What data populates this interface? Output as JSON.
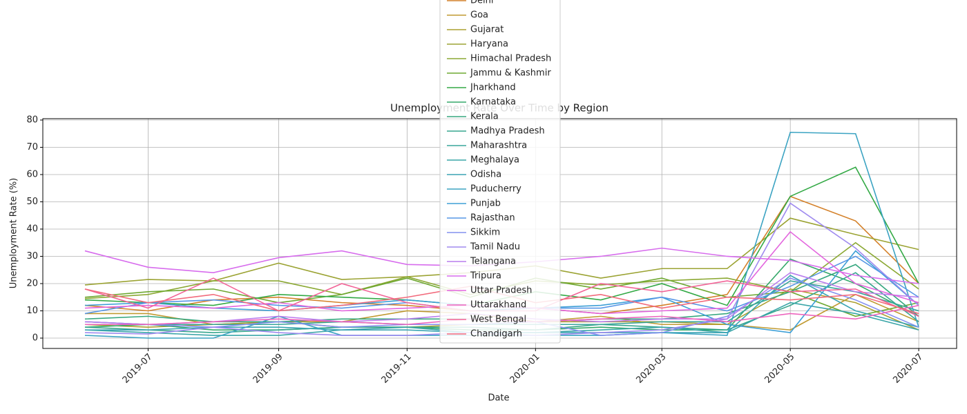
{
  "chart_data": {
    "type": "line",
    "title": "Unemployment Rate Over Time by Region",
    "x_label": "Date",
    "y_label": "Unemployment Rate (%)",
    "x": [
      "2019-06",
      "2019-07",
      "2019-08",
      "2019-09",
      "2019-10",
      "2019-11",
      "2019-12",
      "2020-01",
      "2020-02",
      "2020-03",
      "2020-04",
      "2020-05",
      "2020-06",
      "2020-07"
    ],
    "xlim": [
      "2019-05-12",
      "2020-07-19"
    ],
    "xticks": [
      "2019-07",
      "2019-09",
      "2019-11",
      "2020-01",
      "2020-03",
      "2020-05",
      "2020-07"
    ],
    "ylim": [
      -3.8,
      80.5
    ],
    "yticks": [
      0,
      10,
      20,
      30,
      40,
      50,
      60,
      70,
      80
    ],
    "grid": true,
    "legend": "upper center",
    "series": [
      {
        "name": "Delhi",
        "color": "#d4812a",
        "values": [
          12,
          10,
          14,
          15,
          13,
          12,
          10,
          11,
          9,
          12,
          16,
          52,
          43,
          20
        ]
      },
      {
        "name": "Goa",
        "color": "#c09a31",
        "values": [
          9,
          9,
          5,
          6,
          6,
          10,
          9,
          6,
          8,
          5,
          5,
          3,
          16,
          6
        ]
      },
      {
        "name": "Gujarat",
        "color": "#aca031",
        "values": [
          5,
          4,
          5,
          6,
          4,
          4,
          5,
          6,
          6,
          6,
          5,
          18,
          13,
          3
        ]
      },
      {
        "name": "Haryana",
        "color": "#9ba333",
        "values": [
          19.5,
          21.5,
          21,
          27.5,
          21.5,
          22.5,
          24,
          26.5,
          22,
          25.5,
          25.5,
          44,
          38,
          32.5
        ]
      },
      {
        "name": "Himachal Pradesh",
        "color": "#8ba833",
        "values": [
          14.5,
          16,
          21,
          21,
          16,
          22.5,
          16,
          21,
          19.5,
          21,
          22,
          17,
          35,
          18
        ]
      },
      {
        "name": "Jammu & Kashmir",
        "color": "#6ea831",
        "values": [
          15,
          17,
          18,
          13,
          16,
          22,
          15,
          22,
          18,
          22,
          15,
          17,
          8,
          13
        ]
      },
      {
        "name": "Jharkhand",
        "color": "#33a945",
        "values": [
          14,
          13,
          12,
          16,
          15,
          14,
          12,
          17,
          14,
          20,
          12,
          52,
          62.7,
          20
        ]
      },
      {
        "name": "Karnataka",
        "color": "#35a86a",
        "values": [
          4,
          5,
          3,
          3,
          4,
          4,
          3,
          3,
          4,
          3,
          3,
          29,
          20,
          8
        ]
      },
      {
        "name": "Kerala",
        "color": "#36a77f",
        "values": [
          7,
          8,
          6,
          6,
          7,
          7,
          7,
          6,
          7,
          7,
          9,
          17,
          27,
          8
        ]
      },
      {
        "name": "Madhya Pradesh",
        "color": "#37a68e",
        "values": [
          4,
          3,
          2,
          3,
          4,
          4,
          4,
          3,
          5,
          4,
          3,
          12,
          24,
          6
        ]
      },
      {
        "name": "Maharashtra",
        "color": "#38a59b",
        "values": [
          6,
          5,
          5,
          5,
          6,
          5,
          5,
          5,
          5,
          6,
          6,
          21,
          17,
          10
        ]
      },
      {
        "name": "Meghalaya",
        "color": "#39a5a7",
        "values": [
          3,
          2,
          1,
          1,
          3,
          4,
          2,
          2,
          3,
          4,
          2,
          13,
          9,
          3
        ]
      },
      {
        "name": "Odisha",
        "color": "#3aa4b3",
        "values": [
          3,
          3,
          4,
          4,
          3,
          3,
          2,
          2,
          2,
          2,
          2,
          23,
          10,
          4
        ]
      },
      {
        "name": "Puducherry",
        "color": "#3ba3c2",
        "values": [
          1,
          0,
          0,
          8,
          1,
          1,
          1,
          1,
          1,
          2,
          1,
          75.5,
          75,
          4
        ]
      },
      {
        "name": "Punjab",
        "color": "#3d9fd6",
        "values": [
          12,
          13,
          11,
          10,
          12,
          14,
          12,
          11,
          12,
          15,
          5,
          2,
          32,
          12
        ]
      },
      {
        "name": "Rajasthan",
        "color": "#5796e6",
        "values": [
          9,
          13,
          14,
          12,
          11,
          13,
          10,
          11,
          11,
          15,
          10,
          19,
          30,
          15
        ]
      },
      {
        "name": "Sikkim",
        "color": "#8390ef",
        "values": [
          6,
          5,
          4,
          6,
          4,
          5,
          5,
          6,
          1,
          2,
          8,
          22,
          14,
          4
        ]
      },
      {
        "name": "Tamil Nadu",
        "color": "#9f8aef",
        "values": [
          2,
          1.5,
          4,
          2,
          1,
          1,
          2,
          1,
          2,
          3,
          7,
          49.5,
          33,
          12
        ]
      },
      {
        "name": "Telangana",
        "color": "#b97ced",
        "values": [
          6,
          5,
          6,
          8,
          6,
          7,
          9,
          7,
          6,
          7,
          7,
          24,
          17,
          15
        ]
      },
      {
        "name": "Tripura",
        "color": "#d76ced",
        "values": [
          32,
          26,
          24,
          29.5,
          32,
          27,
          26.5,
          28,
          30,
          33,
          30,
          28.5,
          23,
          20
        ]
      },
      {
        "name": "Uttar Pradesh",
        "color": "#e365de",
        "values": [
          11,
          12,
          11,
          13,
          10,
          11,
          12,
          11,
          9,
          10,
          11,
          39,
          20,
          13
        ]
      },
      {
        "name": "Uttarakhand",
        "color": "#ed64bd",
        "values": [
          5,
          5,
          6,
          7,
          6,
          5,
          7,
          6,
          7,
          8,
          6,
          9,
          7,
          12
        ]
      },
      {
        "name": "West Bengal",
        "color": "#f26497",
        "values": [
          18,
          11,
          22,
          10,
          20,
          13,
          10,
          10,
          20,
          17,
          21,
          17,
          18,
          8
        ]
      },
      {
        "name": "Chandigarh",
        "color": "#f26a7c",
        "values": [
          18,
          13,
          16,
          10,
          12,
          15,
          19,
          13,
          16,
          11,
          15,
          14,
          16,
          9
        ]
      }
    ]
  }
}
